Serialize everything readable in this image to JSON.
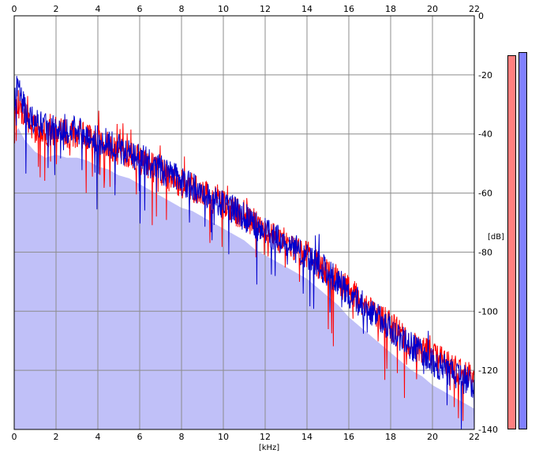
{
  "chart_data": {
    "type": "area",
    "xlabel": "[kHz]",
    "ylabel": "[dB]",
    "xlim": [
      0,
      22
    ],
    "ylim": [
      -140,
      0
    ],
    "x_ticks": [
      "0",
      "2",
      "4",
      "6",
      "8",
      "10",
      "12",
      "14",
      "16",
      "18",
      "20",
      "22"
    ],
    "y_ticks": [
      "0",
      "-20",
      "-40",
      "-60",
      "-80",
      "-100",
      "-120",
      "-140"
    ],
    "grid": true,
    "series": [
      {
        "color": "#ff0000",
        "x": [
          0,
          0.2,
          0.5,
          1,
          1.5,
          2,
          2.5,
          3,
          3.5,
          4,
          4.5,
          5,
          5.5,
          6,
          6.5,
          7,
          7.5,
          8,
          8.5,
          9,
          9.5,
          10,
          10.5,
          11,
          11.5,
          12,
          12.5,
          13,
          13.5,
          14,
          14.5,
          15,
          15.5,
          16,
          16.5,
          17,
          17.5,
          18,
          18.5,
          19,
          19.5,
          20,
          20.5,
          21,
          21.5,
          22
        ],
        "values": [
          -32,
          -30,
          -34,
          -38,
          -40,
          -39,
          -40,
          -40,
          -41,
          -43,
          -44,
          -46,
          -47,
          -49,
          -51,
          -53,
          -55,
          -57,
          -58,
          -60,
          -62,
          -64,
          -66,
          -68,
          -70,
          -73,
          -75,
          -77,
          -79,
          -81,
          -84,
          -87,
          -90,
          -93,
          -96,
          -99,
          -102,
          -105,
          -108,
          -111,
          -113,
          -115,
          -117,
          -119,
          -121,
          -123
        ]
      },
      {
        "color": "#0000cc",
        "x": [
          0,
          0.2,
          0.5,
          1,
          1.5,
          2,
          2.5,
          3,
          3.5,
          4,
          4.5,
          5,
          5.5,
          6,
          6.5,
          7,
          7.5,
          8,
          8.5,
          9,
          9.5,
          10,
          10.5,
          11,
          11.5,
          12,
          12.5,
          13,
          13.5,
          14,
          14.5,
          15,
          15.5,
          16,
          16.5,
          17,
          17.5,
          18,
          18.5,
          19,
          19.5,
          20,
          20.5,
          21,
          21.5,
          22
        ],
        "values": [
          -30,
          -22,
          -32,
          -36,
          -38,
          -37,
          -38,
          -39,
          -40,
          -42,
          -43,
          -45,
          -47,
          -48,
          -50,
          -52,
          -54,
          -56,
          -58,
          -60,
          -62,
          -64,
          -66,
          -68,
          -71,
          -73,
          -75,
          -77,
          -79,
          -81,
          -84,
          -87,
          -90,
          -94,
          -97,
          -100,
          -103,
          -106,
          -109,
          -112,
          -114,
          -117,
          -119,
          -121,
          -123,
          -125
        ]
      }
    ],
    "level_meters": [
      {
        "color": "#ff8080",
        "level_db": -7
      },
      {
        "color": "#8080ff",
        "level_db": -6
      }
    ]
  }
}
